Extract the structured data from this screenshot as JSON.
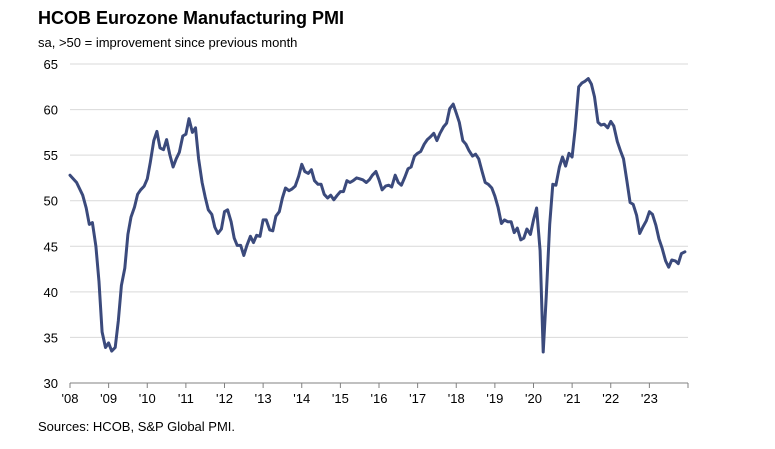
{
  "chart_data": {
    "type": "line",
    "title": "HCOB Eurozone Manufacturing PMI",
    "subtitle": "sa, >50 = improvement  since previous month",
    "source": "Sources: HCOB,  S&P Global PMI.",
    "ylim": [
      30,
      65
    ],
    "y_ticks": [
      "30",
      "35",
      "40",
      "45",
      "50",
      "55",
      "60",
      "65"
    ],
    "xlim": [
      2008,
      2024
    ],
    "x_ticks": [
      "'08",
      "'09",
      "'10",
      "'11",
      "'12",
      "'13",
      "'14",
      "'15",
      "'16",
      "'17",
      "'18",
      "'19",
      "'20",
      "'21",
      "'22",
      "'23"
    ],
    "grid": "horizontal",
    "line_color": "#3b4a7c",
    "series": [
      {
        "name": "",
        "x": [
          2008.0,
          2008.17,
          2008.33,
          2008.42,
          2008.5,
          2008.58,
          2008.67,
          2008.75,
          2008.83,
          2008.92,
          2009.0,
          2009.08,
          2009.17,
          2009.25,
          2009.33,
          2009.42,
          2009.5,
          2009.58,
          2009.67,
          2009.75,
          2009.83,
          2009.92,
          2010.0,
          2010.08,
          2010.17,
          2010.25,
          2010.33,
          2010.42,
          2010.5,
          2010.58,
          2010.67,
          2010.75,
          2010.83,
          2010.92,
          2011.0,
          2011.08,
          2011.17,
          2011.25,
          2011.33,
          2011.42,
          2011.5,
          2011.58,
          2011.67,
          2011.75,
          2011.83,
          2011.92,
          2012.0,
          2012.08,
          2012.17,
          2012.25,
          2012.33,
          2012.42,
          2012.5,
          2012.58,
          2012.67,
          2012.75,
          2012.83,
          2012.92,
          2013.0,
          2013.08,
          2013.17,
          2013.25,
          2013.33,
          2013.42,
          2013.5,
          2013.58,
          2013.67,
          2013.75,
          2013.83,
          2013.92,
          2014.0,
          2014.08,
          2014.17,
          2014.25,
          2014.33,
          2014.42,
          2014.5,
          2014.58,
          2014.67,
          2014.75,
          2014.83,
          2014.92,
          2015.0,
          2015.08,
          2015.17,
          2015.25,
          2015.33,
          2015.42,
          2015.5,
          2015.58,
          2015.67,
          2015.75,
          2015.83,
          2015.92,
          2016.0,
          2016.08,
          2016.17,
          2016.25,
          2016.33,
          2016.42,
          2016.5,
          2016.58,
          2016.67,
          2016.75,
          2016.83,
          2016.92,
          2017.0,
          2017.08,
          2017.17,
          2017.25,
          2017.33,
          2017.42,
          2017.5,
          2017.58,
          2017.67,
          2017.75,
          2017.83,
          2017.92,
          2018.0,
          2018.08,
          2018.17,
          2018.25,
          2018.33,
          2018.42,
          2018.5,
          2018.58,
          2018.67,
          2018.75,
          2018.83,
          2018.92,
          2019.0,
          2019.08,
          2019.17,
          2019.25,
          2019.33,
          2019.42,
          2019.5,
          2019.58,
          2019.67,
          2019.75,
          2019.83,
          2019.92,
          2020.0,
          2020.08,
          2020.17,
          2020.25,
          2020.33,
          2020.42,
          2020.5,
          2020.58,
          2020.67,
          2020.75,
          2020.83,
          2020.92,
          2021.0,
          2021.08,
          2021.17,
          2021.25,
          2021.33,
          2021.42,
          2021.5,
          2021.58,
          2021.67,
          2021.75,
          2021.83,
          2021.92,
          2022.0,
          2022.08,
          2022.17,
          2022.25,
          2022.33,
          2022.42,
          2022.5,
          2022.58,
          2022.67,
          2022.75,
          2022.83,
          2022.92,
          2023.0,
          2023.08,
          2023.17,
          2023.25,
          2023.33,
          2023.42,
          2023.5,
          2023.58,
          2023.67,
          2023.75,
          2023.83,
          2023.92
        ],
        "values": [
          52.8,
          52.0,
          50.6,
          49.2,
          47.4,
          47.6,
          45.0,
          41.1,
          35.6,
          33.9,
          34.4,
          33.5,
          33.9,
          36.8,
          40.7,
          42.6,
          46.3,
          48.2,
          49.3,
          50.7,
          51.2,
          51.6,
          52.4,
          54.2,
          56.6,
          57.6,
          55.8,
          55.6,
          56.7,
          55.1,
          53.7,
          54.6,
          55.3,
          57.1,
          57.3,
          59.0,
          57.5,
          58.0,
          54.6,
          52.0,
          50.4,
          49.0,
          48.5,
          47.1,
          46.4,
          46.9,
          48.8,
          49.0,
          47.7,
          45.9,
          45.1,
          45.1,
          44.0,
          45.1,
          46.1,
          45.4,
          46.2,
          46.1,
          47.9,
          47.9,
          46.8,
          46.7,
          48.3,
          48.8,
          50.3,
          51.4,
          51.1,
          51.3,
          51.6,
          52.7,
          54.0,
          53.2,
          53.0,
          53.4,
          52.2,
          51.8,
          51.8,
          50.7,
          50.3,
          50.6,
          50.1,
          50.6,
          51.0,
          51.0,
          52.2,
          52.0,
          52.2,
          52.5,
          52.4,
          52.3,
          52.0,
          52.3,
          52.8,
          53.2,
          52.3,
          51.2,
          51.6,
          51.7,
          51.5,
          52.8,
          52.0,
          51.7,
          52.6,
          53.5,
          53.7,
          54.9,
          55.2,
          55.4,
          56.2,
          56.7,
          57.0,
          57.4,
          56.6,
          57.4,
          58.1,
          58.5,
          60.1,
          60.6,
          59.6,
          58.6,
          56.6,
          56.2,
          55.5,
          54.9,
          55.1,
          54.6,
          53.2,
          52.0,
          51.8,
          51.4,
          50.5,
          49.3,
          47.5,
          47.9,
          47.7,
          47.7,
          46.5,
          47.0,
          45.7,
          45.9,
          46.9,
          46.3,
          47.9,
          49.2,
          44.5,
          33.4,
          39.4,
          47.4,
          51.8,
          51.7,
          53.7,
          54.8,
          53.8,
          55.2,
          54.8,
          57.9,
          62.5,
          62.9,
          63.1,
          63.4,
          62.8,
          61.4,
          58.6,
          58.3,
          58.4,
          58.0,
          58.7,
          58.2,
          56.5,
          55.5,
          54.6,
          52.1,
          49.8,
          49.6,
          48.4,
          46.4,
          47.1,
          47.8,
          48.8,
          48.5,
          47.3,
          45.8,
          44.8,
          43.4,
          42.7,
          43.5,
          43.4,
          43.1,
          44.2,
          44.4
        ]
      }
    ]
  }
}
